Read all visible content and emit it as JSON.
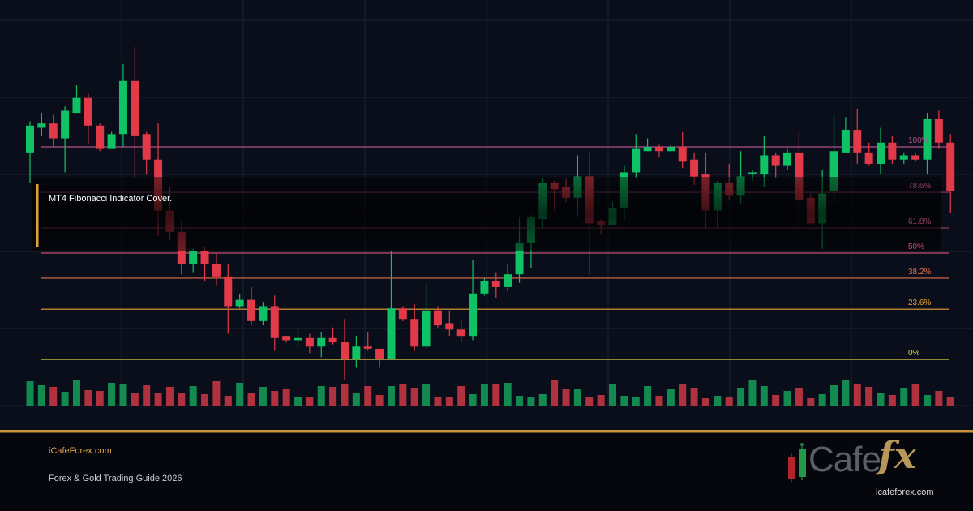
{
  "chart_data": {
    "type": "candlestick",
    "title": "",
    "price_unit_note_hidden": null,
    "grid": true,
    "candle_fields": [
      "open",
      "high",
      "low",
      "close"
    ],
    "candles": [
      [
        97,
        112,
        83,
        110
      ],
      [
        109,
        116,
        105,
        111
      ],
      [
        111,
        115,
        100,
        104
      ],
      [
        104,
        119,
        88,
        117
      ],
      [
        116,
        129,
        116,
        123
      ],
      [
        123,
        125,
        101,
        110
      ],
      [
        110,
        111,
        98,
        99
      ],
      [
        99,
        107,
        99,
        106
      ],
      [
        106,
        139,
        100,
        131
      ],
      [
        131,
        147,
        85,
        105
      ],
      [
        106,
        107,
        87,
        94
      ],
      [
        94,
        111,
        58,
        70
      ],
      [
        70,
        81,
        56,
        60
      ],
      [
        60,
        65,
        40,
        45
      ],
      [
        45,
        52,
        41,
        51
      ],
      [
        51,
        53,
        37,
        45
      ],
      [
        45,
        50,
        35,
        39
      ],
      [
        39,
        45,
        12,
        25
      ],
      [
        25,
        31,
        24,
        28
      ],
      [
        28,
        34,
        16,
        18
      ],
      [
        18,
        27,
        16,
        25
      ],
      [
        25,
        30,
        4,
        10
      ],
      [
        11,
        11,
        8,
        9
      ],
      [
        9,
        14,
        6,
        10
      ],
      [
        10,
        12,
        3,
        6
      ],
      [
        6,
        13,
        1,
        10
      ],
      [
        10,
        15,
        7,
        8
      ],
      [
        8,
        19,
        -10,
        0
      ],
      [
        0,
        11,
        -4,
        6
      ],
      [
        6,
        13,
        4,
        5
      ],
      [
        5,
        5,
        -4,
        0
      ],
      [
        0,
        51,
        0,
        24
      ],
      [
        24,
        25,
        18,
        19
      ],
      [
        19,
        26,
        4,
        6
      ],
      [
        6,
        36,
        5,
        23
      ],
      [
        23,
        25,
        15,
        16
      ],
      [
        17,
        23,
        11,
        14
      ],
      [
        14,
        19,
        8,
        11
      ],
      [
        11,
        47,
        9,
        31
      ],
      [
        31,
        38,
        30,
        37
      ],
      [
        37,
        41,
        29,
        34
      ],
      [
        34,
        45,
        32,
        40
      ],
      [
        40,
        67,
        36,
        55
      ],
      [
        55,
        68,
        43,
        67
      ],
      [
        66,
        85,
        62,
        83
      ],
      [
        83,
        84,
        70,
        80
      ],
      [
        81,
        85,
        74,
        76
      ],
      [
        76,
        96,
        67,
        86
      ],
      [
        86,
        97,
        40,
        64
      ],
      [
        65,
        66,
        59,
        63
      ],
      [
        63,
        74,
        63,
        71
      ],
      [
        71,
        91,
        65,
        88
      ],
      [
        88,
        106,
        85,
        99
      ],
      [
        98,
        104,
        98,
        100
      ],
      [
        100,
        101,
        95,
        98
      ],
      [
        98,
        101,
        97,
        100
      ],
      [
        100,
        107,
        90,
        93
      ],
      [
        94,
        97,
        82,
        86
      ],
      [
        87,
        97,
        62,
        70
      ],
      [
        70,
        84,
        62,
        83
      ],
      [
        83,
        92,
        75,
        77
      ],
      [
        77,
        98,
        73,
        86
      ],
      [
        87,
        89,
        84,
        88
      ],
      [
        87,
        105,
        81,
        96
      ],
      [
        96,
        97,
        85,
        91
      ],
      [
        91,
        99,
        89,
        97
      ],
      [
        97,
        107,
        62,
        75
      ],
      [
        76,
        78,
        63,
        64
      ],
      [
        64,
        89,
        52,
        78
      ],
      [
        79,
        115,
        74,
        98
      ],
      [
        97,
        114,
        97,
        108
      ],
      [
        108,
        118,
        92,
        97
      ],
      [
        97,
        102,
        91,
        92
      ],
      [
        92,
        109,
        87,
        102
      ],
      [
        102,
        105,
        92,
        94
      ],
      [
        94,
        97,
        92,
        96
      ],
      [
        96,
        97,
        93,
        94
      ],
      [
        94,
        116,
        87,
        113
      ],
      [
        113,
        117,
        99,
        102
      ],
      [
        102,
        106,
        69,
        79
      ]
    ],
    "volumes": [
      30,
      25,
      23,
      17,
      31,
      19,
      18,
      28,
      27,
      15,
      25,
      16,
      23,
      16,
      24,
      14,
      30,
      12,
      28,
      16,
      23,
      18,
      20,
      11,
      11,
      24,
      23,
      27,
      16,
      24,
      13,
      24,
      26,
      22,
      27,
      10,
      10,
      24,
      14,
      26,
      26,
      28,
      12,
      11,
      14,
      31,
      20,
      21,
      10,
      13,
      27,
      12,
      11,
      24,
      12,
      20,
      27,
      22,
      9,
      12,
      10,
      22,
      32,
      24,
      13,
      18,
      22,
      9,
      14,
      25,
      31,
      26,
      23,
      16,
      13,
      22,
      27,
      13,
      18,
      11
    ],
    "fib_levels": [
      {
        "label": "100%",
        "value": 100,
        "color": "#b04f8c"
      },
      {
        "label": "78.6%",
        "value": 78.6,
        "color": "#8a3f66"
      },
      {
        "label": "61.8%",
        "value": 61.8,
        "color": "#9a4466"
      },
      {
        "label": "50%",
        "value": 50,
        "color": "#c24e68"
      },
      {
        "label": "38.2%",
        "value": 38.2,
        "color": "#e0704c"
      },
      {
        "label": "23.6%",
        "value": 23.6,
        "color": "#e8a035"
      },
      {
        "label": "0%",
        "value": 0,
        "color": "#e8d040"
      }
    ],
    "colors": {
      "up": "#10c266",
      "down": "#e23a48",
      "vol_up": "#138a50",
      "vol_down": "#b0323e",
      "background": "#0a0e1a",
      "grid": "#1e2436"
    }
  },
  "cover": {
    "text": "MT4 Fibonacci Indicator Cover.",
    "accent": "#e0a03a"
  },
  "footer": {
    "site": "iCafeForex.com",
    "guide": "Forex & Gold Trading Guide 2026",
    "separator_color": "#c8913a"
  },
  "logo": {
    "word": "Cafe",
    "fx": "fx",
    "url": "icafeforex.com"
  }
}
